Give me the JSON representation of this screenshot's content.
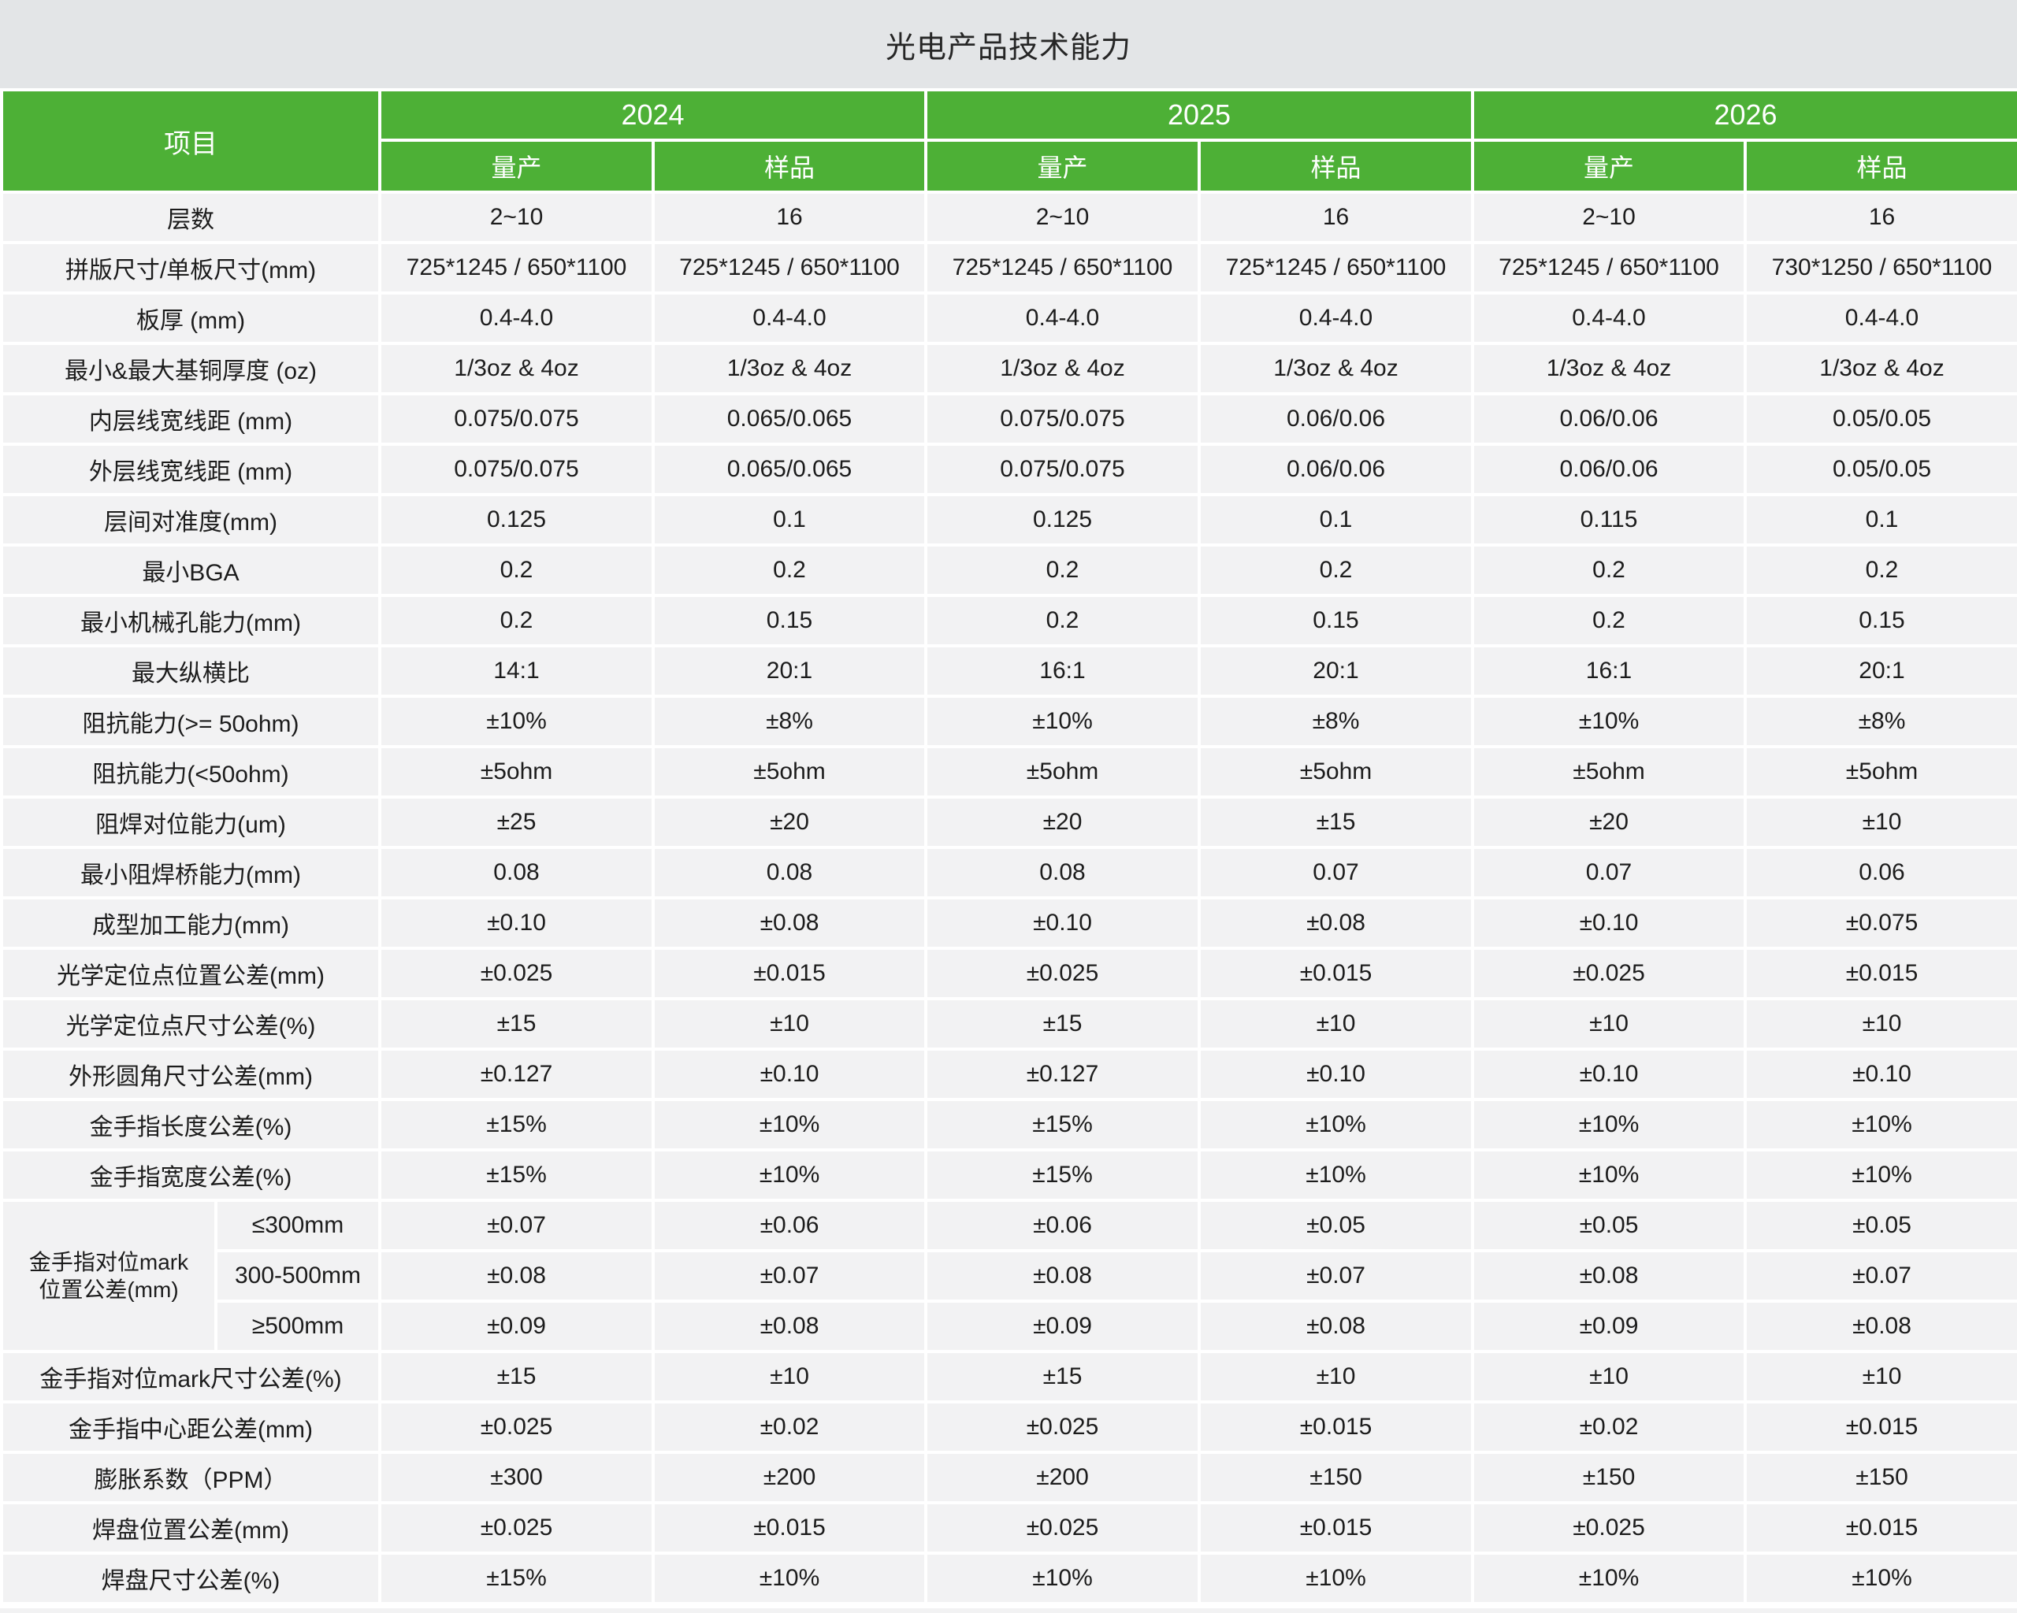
{
  "title": "光电产品技术能力",
  "colors": {
    "header_green": "#4DB036",
    "title_band_gray": "#E3E5E7",
    "row_gray": "#F2F2F3",
    "separator": "#FFFFFF",
    "text_dark": "#1C1C1C",
    "header_text": "#FFFFFF"
  },
  "table": {
    "item_header": "项目",
    "year_groups": [
      {
        "year": "2024",
        "subcols": [
          "量产",
          "样品"
        ]
      },
      {
        "year": "2025",
        "subcols": [
          "量产",
          "样品"
        ]
      },
      {
        "year": "2026",
        "subcols": [
          "量产",
          "样品"
        ]
      }
    ],
    "rows": [
      {
        "label": "层数",
        "values": [
          "2~10",
          "16",
          "2~10",
          "16",
          "2~10",
          "16"
        ]
      },
      {
        "label": "拼版尺寸/单板尺寸(mm)",
        "values": [
          "725*1245 / 650*1100",
          "725*1245 / 650*1100",
          "725*1245 / 650*1100",
          "725*1245 / 650*1100",
          "725*1245 / 650*1100",
          "730*1250 / 650*1100"
        ]
      },
      {
        "label": "板厚 (mm)",
        "values": [
          "0.4-4.0",
          "0.4-4.0",
          "0.4-4.0",
          "0.4-4.0",
          "0.4-4.0",
          "0.4-4.0"
        ]
      },
      {
        "label": "最小&最大基铜厚度 (oz)",
        "values": [
          "1/3oz & 4oz",
          "1/3oz & 4oz",
          "1/3oz & 4oz",
          "1/3oz & 4oz",
          "1/3oz & 4oz",
          "1/3oz & 4oz"
        ]
      },
      {
        "label": "内层线宽线距 (mm)",
        "values": [
          "0.075/0.075",
          "0.065/0.065",
          "0.075/0.075",
          "0.06/0.06",
          "0.06/0.06",
          "0.05/0.05"
        ]
      },
      {
        "label": "外层线宽线距 (mm)",
        "values": [
          "0.075/0.075",
          "0.065/0.065",
          "0.075/0.075",
          "0.06/0.06",
          "0.06/0.06",
          "0.05/0.05"
        ]
      },
      {
        "label": "层间对准度(mm)",
        "values": [
          "0.125",
          "0.1",
          "0.125",
          "0.1",
          "0.115",
          "0.1"
        ]
      },
      {
        "label": "最小BGA",
        "values": [
          "0.2",
          "0.2",
          "0.2",
          "0.2",
          "0.2",
          "0.2"
        ]
      },
      {
        "label": "最小机械孔能力(mm)",
        "values": [
          "0.2",
          "0.15",
          "0.2",
          "0.15",
          "0.2",
          "0.15"
        ]
      },
      {
        "label": "最大纵横比",
        "values": [
          "14:1",
          "20:1",
          "16:1",
          "20:1",
          "16:1",
          "20:1"
        ]
      },
      {
        "label": "阻抗能力(>= 50ohm)",
        "values": [
          "±10%",
          "±8%",
          "±10%",
          "±8%",
          "±10%",
          "±8%"
        ]
      },
      {
        "label": "阻抗能力(<50ohm)",
        "values": [
          "±5ohm",
          "±5ohm",
          "±5ohm",
          "±5ohm",
          "±5ohm",
          "±5ohm"
        ]
      },
      {
        "label": "阻焊对位能力(um)",
        "values": [
          "±25",
          "±20",
          "±20",
          "±15",
          "±20",
          "±10"
        ]
      },
      {
        "label": "最小阻焊桥能力(mm)",
        "values": [
          "0.08",
          "0.08",
          "0.08",
          "0.07",
          "0.07",
          "0.06"
        ]
      },
      {
        "label": "成型加工能力(mm)",
        "values": [
          "±0.10",
          "±0.08",
          "±0.10",
          "±0.08",
          "±0.10",
          "±0.075"
        ]
      },
      {
        "label": "光学定位点位置公差(mm)",
        "values": [
          "±0.025",
          "±0.015",
          "±0.025",
          "±0.015",
          "±0.025",
          "±0.015"
        ]
      },
      {
        "label": "光学定位点尺寸公差(%)",
        "values": [
          "±15",
          "±10",
          "±15",
          "±10",
          "±10",
          "±10"
        ]
      },
      {
        "label": "外形圆角尺寸公差(mm)",
        "values": [
          "±0.127",
          "±0.10",
          "±0.127",
          "±0.10",
          "±0.10",
          "±0.10"
        ]
      },
      {
        "label": "金手指长度公差(%)",
        "values": [
          "±15%",
          "±10%",
          "±15%",
          "±10%",
          "±10%",
          "±10%"
        ]
      },
      {
        "label": "金手指宽度公差(%)",
        "values": [
          "±15%",
          "±10%",
          "±15%",
          "±10%",
          "±10%",
          "±10%"
        ]
      },
      {
        "group": {
          "label_lines": [
            "金手指对位mark",
            "位置公差(mm)"
          ],
          "subrows": [
            {
              "range": "≤300mm",
              "values": [
                "±0.07",
                "±0.06",
                "±0.06",
                "±0.05",
                "±0.05",
                "±0.05"
              ]
            },
            {
              "range": "300-500mm",
              "values": [
                "±0.08",
                "±0.07",
                "±0.08",
                "±0.07",
                "±0.08",
                "±0.07"
              ]
            },
            {
              "range": "≥500mm",
              "values": [
                "±0.09",
                "±0.08",
                "±0.09",
                "±0.08",
                "±0.09",
                "±0.08"
              ]
            }
          ]
        }
      },
      {
        "label": "金手指对位mark尺寸公差(%)",
        "values": [
          "±15",
          "±10",
          "±15",
          "±10",
          "±10",
          "±10"
        ]
      },
      {
        "label": "金手指中心距公差(mm)",
        "values": [
          "±0.025",
          "±0.02",
          "±0.025",
          "±0.015",
          "±0.02",
          "±0.015"
        ]
      },
      {
        "label": "膨胀系数（PPM）",
        "values": [
          "±300",
          "±200",
          "±200",
          "±150",
          "±150",
          "±150"
        ]
      },
      {
        "label": "焊盘位置公差(mm)",
        "values": [
          "±0.025",
          "±0.015",
          "±0.025",
          "±0.015",
          "±0.025",
          "±0.015"
        ]
      },
      {
        "label": "焊盘尺寸公差(%)",
        "values": [
          "±15%",
          "±10%",
          "±10%",
          "±10%",
          "±10%",
          "±10%"
        ]
      }
    ]
  }
}
